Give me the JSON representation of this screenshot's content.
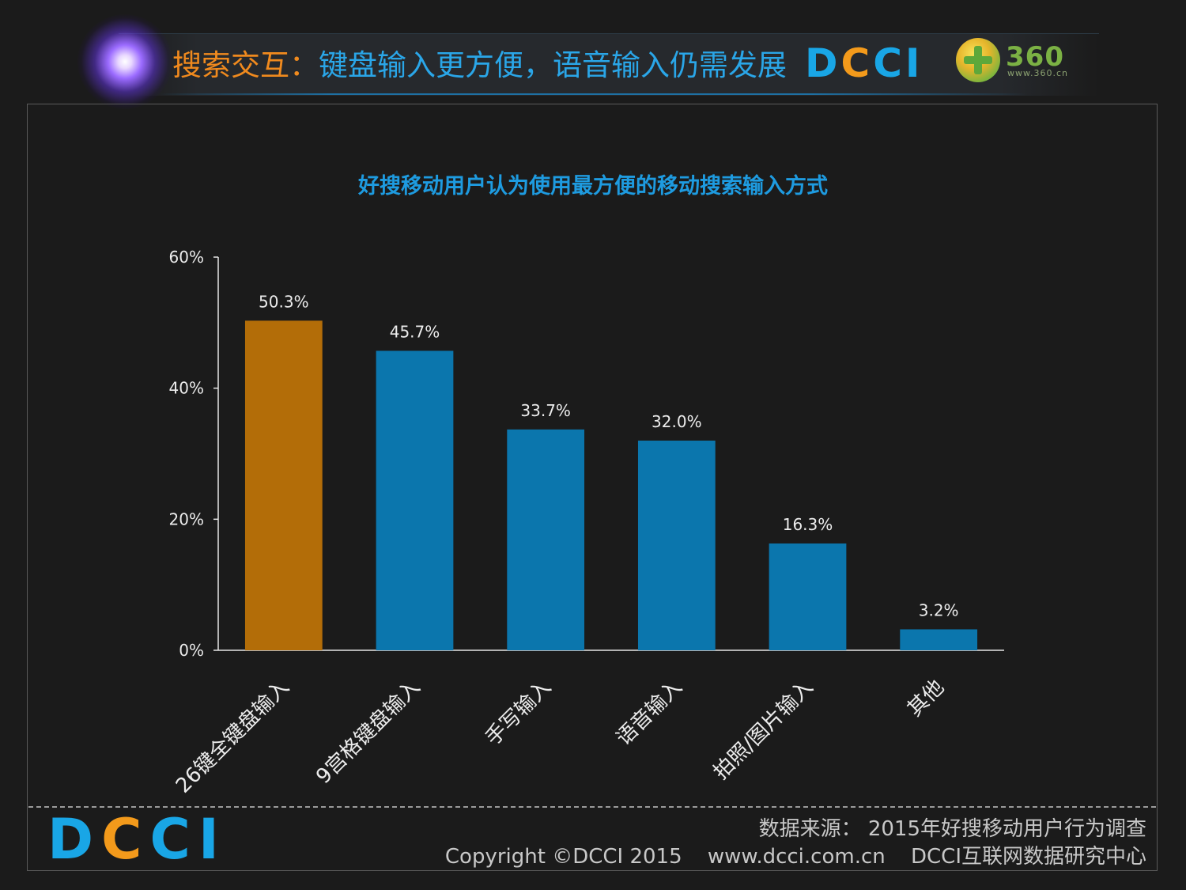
{
  "header": {
    "title_part1": "搜索交互：",
    "title_part2": "键盘输入更方便，语音输入仍需发展",
    "logo_dcci": [
      "D",
      "C",
      "C",
      "I"
    ],
    "logo_360": "360",
    "logo_360_url": "www.360.cn"
  },
  "colors": {
    "highlight_bar": "#b36d08",
    "bar": "#0b76ad",
    "title_blue": "#1e9be0",
    "title_orange": "#f08a1e",
    "axis": "#e6e6e6",
    "label": "#ececec"
  },
  "chart_data": {
    "type": "bar",
    "title": "好搜移动用户认为使用最方便的移动搜索输入方式",
    "categories": [
      "26键全键盘输入",
      "9宫格键盘输入",
      "手写输入",
      "语音输入",
      "拍照/图片输入",
      "其他"
    ],
    "values": [
      50.3,
      45.7,
      33.7,
      32.0,
      16.3,
      3.2
    ],
    "value_labels": [
      "50.3%",
      "45.7%",
      "33.7%",
      "32.0%",
      "16.3%",
      "3.2%"
    ],
    "highlight_index": 0,
    "ylim": [
      0,
      60
    ],
    "yticks": [
      0,
      20,
      40,
      60
    ],
    "ytick_labels": [
      "0%",
      "20%",
      "40%",
      "60%"
    ],
    "xlabel": "",
    "ylabel": "",
    "grid": false,
    "legend": "none"
  },
  "footer": {
    "source": "数据来源： 2015年好搜移动用户行为调查",
    "copyright": "Copyright ©DCCI 2015",
    "website": "www.dcci.com.cn",
    "org": "DCCI互联网数据研究中心",
    "logo": [
      "D",
      "C",
      "C",
      "I"
    ]
  }
}
